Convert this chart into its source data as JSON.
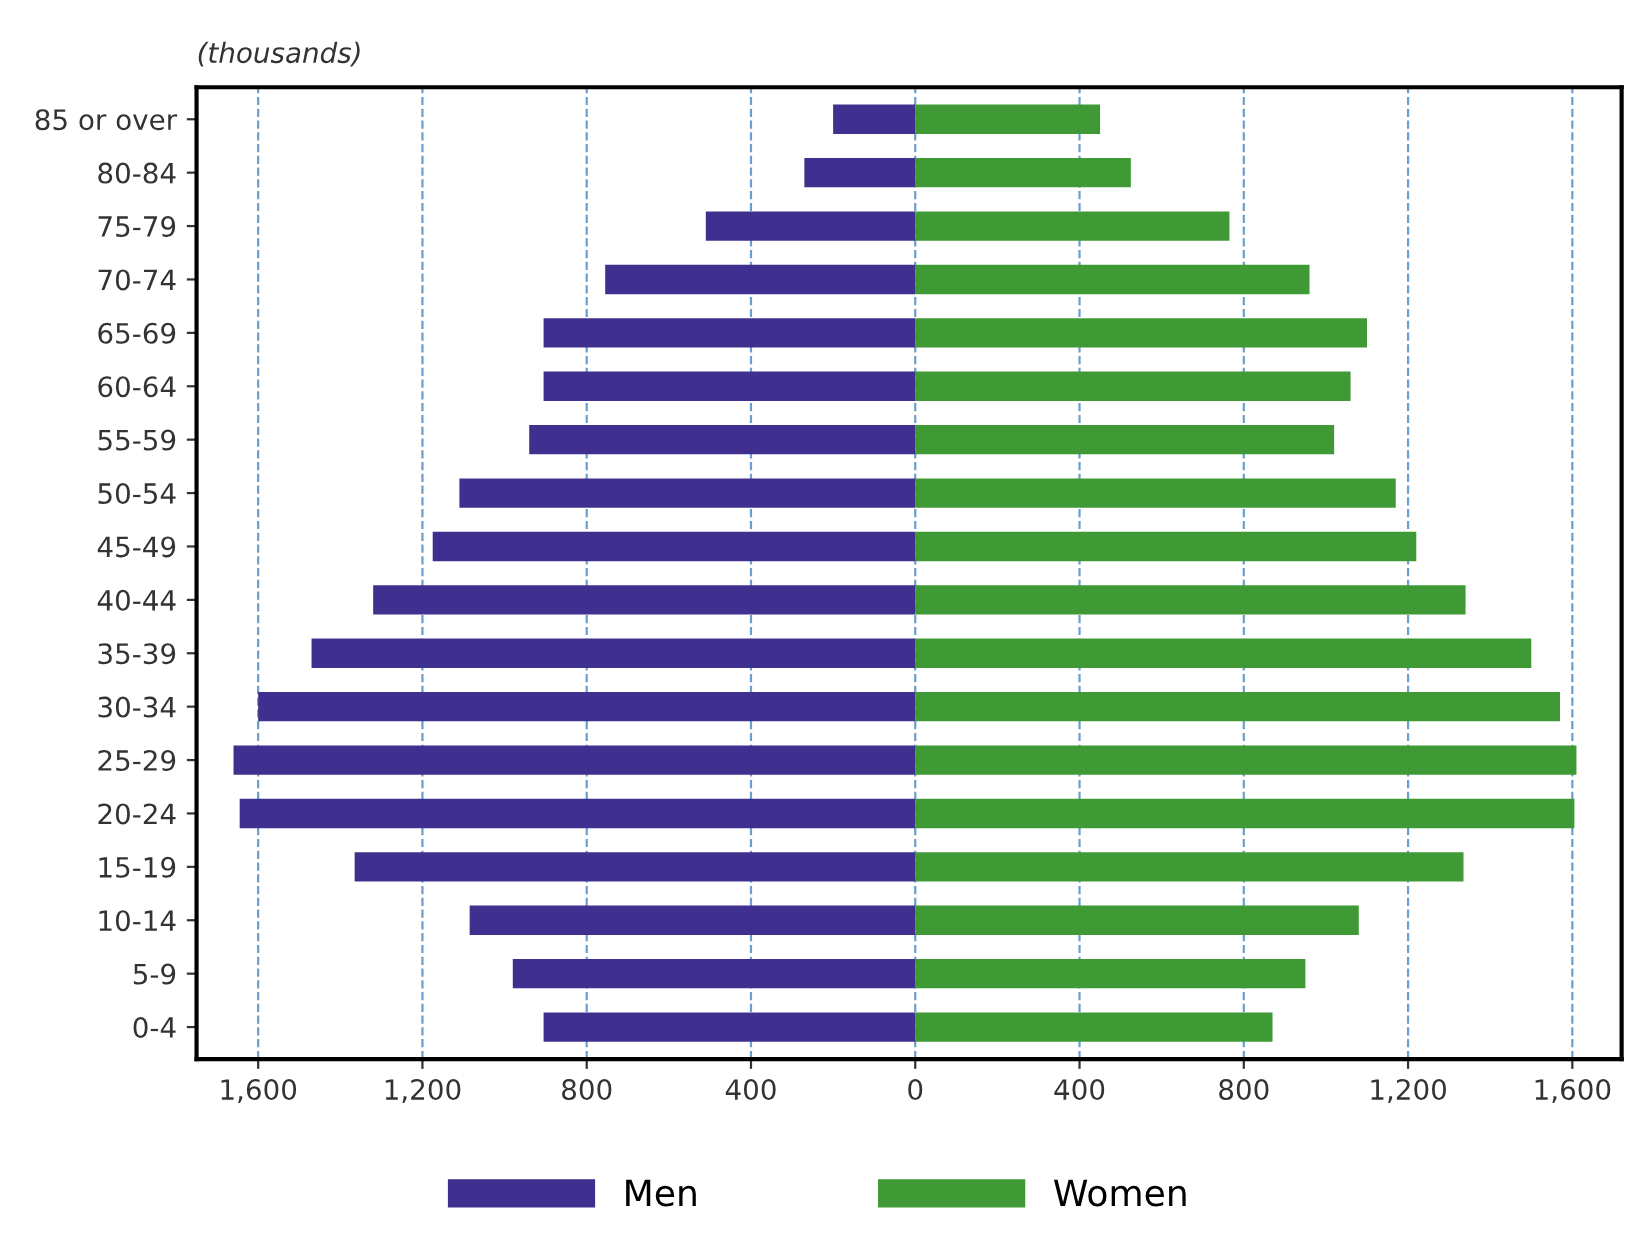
{
  "chart_data": {
    "type": "bar",
    "orientation": "horizontal",
    "subtitle": "(thousands)",
    "categories": [
      "85 or over",
      "80-84",
      "75-79",
      "70-74",
      "65-69",
      "60-64",
      "55-59",
      "50-54",
      "45-49",
      "40-44",
      "35-39",
      "30-34",
      "25-29",
      "20-24",
      "15-19",
      "10-14",
      "5-9",
      "0-4"
    ],
    "series": [
      {
        "name": "Men",
        "color": "#3f3090",
        "values": [
          -200,
          -270,
          -510,
          -755,
          -905,
          -905,
          -940,
          -1110,
          -1175,
          -1320,
          -1470,
          -1600,
          -1660,
          -1645,
          -1365,
          -1085,
          -980,
          -905
        ]
      },
      {
        "name": "Women",
        "color": "#3f9a35",
        "values": [
          450,
          525,
          765,
          960,
          1100,
          1060,
          1020,
          1170,
          1220,
          1340,
          1500,
          1570,
          1610,
          1605,
          1335,
          1080,
          950,
          870
        ]
      }
    ],
    "xlim": [
      -1750,
      1720
    ],
    "xticks": [
      {
        "value": -1600,
        "label": "1,600"
      },
      {
        "value": -1200,
        "label": "1,200"
      },
      {
        "value": -800,
        "label": "800"
      },
      {
        "value": -400,
        "label": "400"
      },
      0,
      {
        "value": 400,
        "label": "400"
      },
      {
        "value": 800,
        "label": "800"
      },
      {
        "value": 1200,
        "label": "1,200"
      },
      {
        "value": 1600,
        "label": "1,600"
      }
    ],
    "stacked": true,
    "grid": "x",
    "legend": "bottom"
  }
}
